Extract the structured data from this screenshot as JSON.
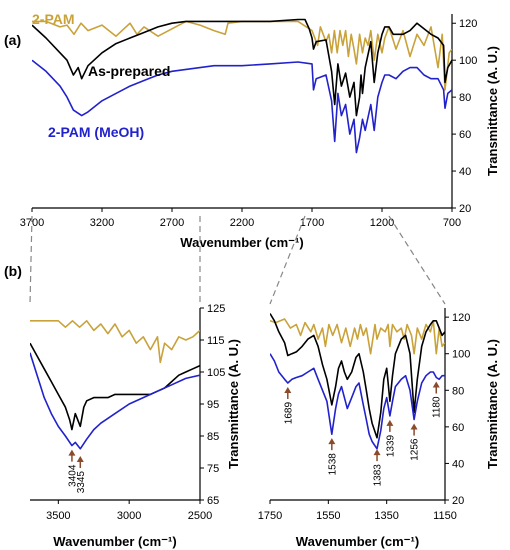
{
  "chart_data": [
    {
      "type": "line",
      "panel": "(a)",
      "xlabel": "Wavenumber (cm⁻¹)",
      "ylabel": "Transmittance (A. U.)",
      "xlim": [
        3700,
        700
      ],
      "ylim": [
        20,
        125
      ],
      "xticks": [
        "3700",
        "3200",
        "2700",
        "2200",
        "1700",
        "1200",
        "700"
      ],
      "yticks": [
        "20",
        "40",
        "60",
        "80",
        "100",
        "120"
      ],
      "series": [
        {
          "name": "2-PAM",
          "color": "#C9A23A",
          "x": [
            3700,
            3600,
            3500,
            3450,
            3400,
            3350,
            3300,
            3200,
            3100,
            3000,
            2950,
            2900,
            2800,
            2700,
            2600,
            2500,
            2400,
            2320,
            2300,
            2200,
            2000,
            1800,
            1700,
            1660,
            1640,
            1600,
            1580,
            1560,
            1540,
            1520,
            1500,
            1480,
            1460,
            1440,
            1420,
            1400,
            1383,
            1360,
            1339,
            1320,
            1300,
            1280,
            1256,
            1230,
            1200,
            1180,
            1150,
            1100,
            1050,
            1000,
            950,
            900,
            850,
            800,
            770,
            750,
            720,
            700
          ],
          "y": [
            121,
            121,
            118,
            119,
            114,
            120,
            116,
            119,
            113,
            120,
            114,
            118,
            113,
            117,
            121,
            119,
            116,
            114,
            120,
            121,
            121,
            121,
            116,
            108,
            118,
            110,
            114,
            104,
            116,
            104,
            116,
            108,
            116,
            102,
            114,
            106,
            98,
            114,
            104,
            112,
            108,
            116,
            100,
            114,
            104,
            112,
            118,
            106,
            116,
            102,
            114,
            108,
            118,
            96,
            114,
            84,
            104,
            106
          ]
        },
        {
          "name": "As-prepared",
          "color": "#000000",
          "x": [
            3700,
            3600,
            3500,
            3450,
            3404,
            3370,
            3345,
            3300,
            3200,
            3100,
            3000,
            2900,
            2800,
            2700,
            2600,
            2500,
            2400,
            2300,
            2200,
            2000,
            1800,
            1750,
            1720,
            1700,
            1689,
            1670,
            1600,
            1560,
            1538,
            1515,
            1490,
            1460,
            1430,
            1400,
            1383,
            1360,
            1350,
            1339,
            1320,
            1280,
            1256,
            1230,
            1200,
            1180,
            1150,
            1120,
            1050,
            1000,
            950,
            900,
            850,
            800,
            760,
            750,
            730,
            700
          ],
          "y": [
            119,
            112,
            104,
            100,
            92,
            96,
            90,
            97,
            104,
            109,
            112,
            115,
            118,
            120,
            121,
            121,
            121,
            121,
            121,
            121,
            122,
            122,
            117,
            112,
            106,
            110,
            111,
            94,
            76,
            98,
            86,
            93,
            80,
            88,
            70,
            80,
            92,
            82,
            96,
            110,
            88,
            104,
            114,
            118,
            118,
            114,
            114,
            116,
            120,
            117,
            114,
            112,
            108,
            88,
            96,
            100
          ]
        },
        {
          "name": "2-PAM (MeOH)",
          "color": "#2222CC",
          "x": [
            3700,
            3600,
            3500,
            3450,
            3404,
            3345,
            3300,
            3200,
            3100,
            3000,
            2900,
            2800,
            2700,
            2600,
            2500,
            2400,
            2300,
            2200,
            2000,
            1800,
            1700,
            1689,
            1670,
            1600,
            1560,
            1538,
            1515,
            1490,
            1460,
            1430,
            1400,
            1383,
            1360,
            1339,
            1320,
            1280,
            1256,
            1230,
            1200,
            1180,
            1150,
            1100,
            1050,
            1000,
            950,
            900,
            850,
            800,
            760,
            750,
            730,
            700
          ],
          "y": [
            100,
            94,
            86,
            80,
            73,
            70,
            72,
            78,
            82,
            86,
            89,
            92,
            94,
            95,
            96,
            97,
            97,
            97,
            98,
            99,
            98,
            84,
            90,
            92,
            78,
            56,
            82,
            70,
            76,
            60,
            68,
            50,
            58,
            68,
            62,
            76,
            62,
            80,
            88,
            92,
            92,
            90,
            94,
            96,
            96,
            92,
            90,
            90,
            84,
            74,
            82,
            84
          ]
        }
      ]
    },
    {
      "type": "line",
      "panel": "(b)",
      "xlabel": "Wavenumber (cm⁻¹)",
      "ylabel": "Transmittance (A. U.)",
      "xlim": [
        3700,
        2500
      ],
      "ylim": [
        65,
        125
      ],
      "xticks": [
        "3500",
        "3000",
        "2500"
      ],
      "yticks": [
        "65",
        "75",
        "85",
        "95",
        "105",
        "115",
        "125"
      ],
      "annotations": [
        {
          "label": "3404",
          "x": 3404,
          "y": 82
        },
        {
          "label": "3345",
          "x": 3345,
          "y": 80
        }
      ],
      "series": [
        {
          "name": "2-PAM",
          "color": "#C9A23A",
          "x": [
            3700,
            3650,
            3600,
            3500,
            3450,
            3400,
            3350,
            3300,
            3250,
            3200,
            3150,
            3100,
            3050,
            3000,
            2950,
            2900,
            2850,
            2800,
            2780,
            2750,
            2700,
            2650,
            2600,
            2550,
            2500
          ],
          "y": [
            121,
            121,
            121,
            121,
            119,
            121,
            119,
            121,
            118,
            120,
            117,
            120,
            116,
            118,
            114,
            116,
            112,
            116,
            108,
            114,
            112,
            116,
            115,
            116,
            118
          ]
        },
        {
          "name": "As-prepared",
          "color": "#000000",
          "x": [
            3700,
            3650,
            3600,
            3550,
            3500,
            3450,
            3420,
            3404,
            3380,
            3345,
            3320,
            3300,
            3250,
            3200,
            3150,
            3100,
            3050,
            3000,
            2950,
            2900,
            2850,
            2800,
            2750,
            2700,
            2650,
            2600,
            2550,
            2500
          ],
          "y": [
            114,
            110,
            106,
            102,
            98,
            94,
            90,
            87,
            92,
            88,
            94,
            96,
            97,
            97,
            97,
            98,
            98,
            98,
            98,
            98,
            98,
            99,
            100,
            102,
            104,
            105,
            106,
            107
          ]
        },
        {
          "name": "2-PAM (MeOH)",
          "color": "#2222CC",
          "x": [
            3700,
            3650,
            3600,
            3550,
            3500,
            3450,
            3404,
            3380,
            3345,
            3300,
            3250,
            3200,
            3100,
            3000,
            2900,
            2800,
            2700,
            2600,
            2500
          ],
          "y": [
            111,
            104,
            97,
            92,
            88,
            85,
            82,
            83,
            81,
            84,
            87,
            89,
            92,
            95,
            97,
            99,
            101,
            103,
            104
          ]
        }
      ]
    },
    {
      "type": "line",
      "panel": "(b)",
      "xlabel": "Wavenumber (cm⁻¹)",
      "ylabel": "Transmittance (A. U.)",
      "xlim": [
        1750,
        1150
      ],
      "ylim": [
        20,
        125
      ],
      "xticks": [
        "1750",
        "1550",
        "1350",
        "1150"
      ],
      "yticks": [
        "20",
        "40",
        "60",
        "80",
        "100",
        "120"
      ],
      "annotations": [
        {
          "label": "1689",
          "x": 1689,
          "y": 84
        },
        {
          "label": "1538",
          "x": 1538,
          "y": 56
        },
        {
          "label": "1383",
          "x": 1383,
          "y": 50
        },
        {
          "label": "1339",
          "x": 1339,
          "y": 66
        },
        {
          "label": "1256",
          "x": 1256,
          "y": 64
        },
        {
          "label": "1180",
          "x": 1180,
          "y": 87
        }
      ],
      "series": [
        {
          "name": "2-PAM",
          "color": "#C9A23A",
          "x": [
            1750,
            1730,
            1700,
            1680,
            1660,
            1645,
            1630,
            1610,
            1600,
            1585,
            1570,
            1560,
            1548,
            1535,
            1520,
            1505,
            1490,
            1475,
            1460,
            1450,
            1440,
            1430,
            1420,
            1405,
            1390,
            1383,
            1370,
            1355,
            1345,
            1339,
            1330,
            1315,
            1300,
            1290,
            1280,
            1265,
            1256,
            1245,
            1230,
            1215,
            1200,
            1190,
            1180,
            1170,
            1160,
            1150
          ],
          "y": [
            118,
            117,
            119,
            114,
            116,
            110,
            117,
            112,
            116,
            108,
            114,
            104,
            116,
            110,
            116,
            106,
            114,
            104,
            114,
            108,
            116,
            110,
            114,
            100,
            116,
            108,
            114,
            112,
            116,
            104,
            116,
            112,
            114,
            108,
            116,
            110,
            100,
            114,
            108,
            116,
            112,
            118,
            100,
            114,
            104,
            106
          ]
        },
        {
          "name": "As-prepared",
          "color": "#000000",
          "x": [
            1750,
            1735,
            1720,
            1700,
            1689,
            1675,
            1660,
            1640,
            1620,
            1600,
            1585,
            1570,
            1555,
            1538,
            1525,
            1515,
            1505,
            1495,
            1485,
            1470,
            1455,
            1445,
            1430,
            1420,
            1410,
            1400,
            1383,
            1370,
            1360,
            1350,
            1339,
            1330,
            1320,
            1300,
            1285,
            1270,
            1256,
            1245,
            1230,
            1215,
            1200,
            1190,
            1180,
            1170,
            1160,
            1150
          ],
          "y": [
            122,
            118,
            112,
            106,
            99,
            100,
            101,
            104,
            108,
            110,
            104,
            94,
            86,
            72,
            82,
            92,
            96,
            90,
            86,
            90,
            98,
            100,
            90,
            80,
            70,
            62,
            54,
            68,
            86,
            92,
            74,
            88,
            100,
            108,
            110,
            100,
            68,
            86,
            104,
            112,
            116,
            118,
            118,
            114,
            110,
            112
          ]
        },
        {
          "name": "2-PAM (MeOH)",
          "color": "#2222CC",
          "x": [
            1750,
            1735,
            1720,
            1700,
            1689,
            1675,
            1660,
            1640,
            1620,
            1600,
            1585,
            1570,
            1555,
            1538,
            1525,
            1515,
            1505,
            1495,
            1485,
            1470,
            1455,
            1445,
            1430,
            1420,
            1410,
            1400,
            1383,
            1370,
            1360,
            1350,
            1339,
            1330,
            1320,
            1300,
            1285,
            1270,
            1256,
            1245,
            1230,
            1215,
            1200,
            1190,
            1180,
            1170,
            1160,
            1150
          ],
          "y": [
            100,
            96,
            90,
            86,
            84,
            86,
            87,
            88,
            90,
            92,
            86,
            80,
            74,
            56,
            70,
            78,
            82,
            76,
            70,
            76,
            82,
            84,
            72,
            64,
            56,
            52,
            48,
            58,
            70,
            76,
            66,
            74,
            82,
            86,
            88,
            80,
            64,
            74,
            84,
            88,
            90,
            90,
            87,
            86,
            88,
            88
          ]
        }
      ]
    }
  ],
  "labels": {
    "panel_a": "(a)",
    "panel_b": "(b)",
    "series_2pam": "2-PAM",
    "series_asprep": "As-prepared",
    "series_meoh": "2-PAM (MeOH)"
  }
}
